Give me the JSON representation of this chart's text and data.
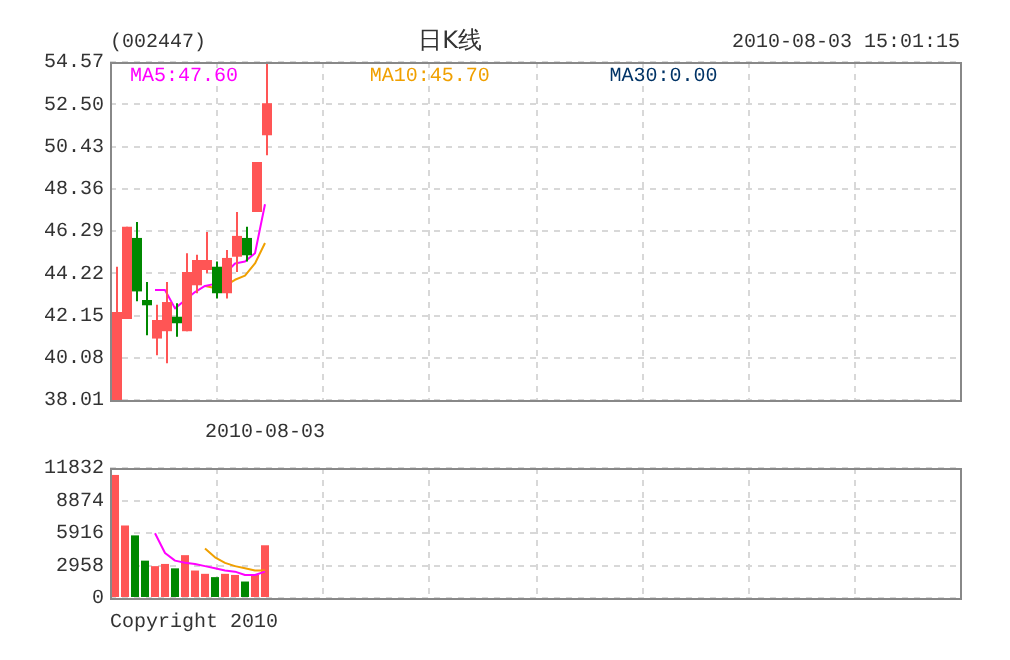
{
  "chart_data": [
    {
      "type": "candlestick",
      "title": "日K线",
      "annotations": [
        "(002447)",
        "2010-08-03 15:01:15",
        "2010-08-03"
      ],
      "categories": [
        null,
        null,
        null,
        null,
        null,
        null,
        null,
        null,
        null,
        null,
        null,
        null,
        null,
        null,
        null,
        null,
        null,
        null,
        null,
        null,
        null,
        null,
        null,
        null,
        null,
        null,
        null,
        null,
        null,
        null,
        null,
        null,
        null,
        null,
        null,
        null,
        null,
        null,
        null,
        null,
        null,
        null,
        null,
        null,
        null,
        null,
        null,
        null,
        null,
        null,
        null,
        null,
        null,
        null,
        null,
        null,
        null,
        null,
        null,
        null,
        null,
        null,
        null,
        null,
        null,
        null,
        null,
        null,
        null,
        null,
        null,
        null,
        null,
        null,
        null,
        null,
        null,
        null,
        null,
        null,
        null,
        null,
        null,
        null,
        null
      ],
      "ohlc": [
        [
          38.01,
          44.54,
          38.01,
          42.32
        ],
        [
          41.98,
          46.5,
          41.98,
          46.5
        ],
        [
          45.95,
          46.73,
          42.85,
          43.33
        ],
        [
          42.91,
          43.79,
          41.18,
          42.65
        ],
        [
          41.02,
          42.68,
          40.2,
          41.93
        ],
        [
          41.38,
          43.79,
          39.81,
          42.81
        ],
        [
          42.09,
          42.75,
          41.11,
          41.77
        ],
        [
          41.38,
          45.2,
          41.38,
          44.28
        ],
        [
          43.63,
          45.13,
          43.24,
          44.87
        ],
        [
          44.38,
          46.24,
          44.22,
          44.87
        ],
        [
          44.54,
          44.8,
          42.98,
          43.24
        ],
        [
          43.24,
          45.36,
          42.98,
          44.97
        ],
        [
          45.03,
          47.22,
          44.28,
          46.05
        ],
        [
          45.95,
          46.5,
          44.8,
          45.1
        ],
        [
          47.22,
          49.67,
          47.22,
          49.67
        ],
        [
          50.98,
          54.57,
          50.0,
          52.55
        ],
        null,
        null,
        null,
        null,
        null,
        null,
        null,
        null,
        null,
        null,
        null,
        null,
        null,
        null,
        null,
        null,
        null,
        null,
        null,
        null,
        null,
        null,
        null,
        null,
        null,
        null,
        null,
        null,
        null,
        null,
        null,
        null,
        null,
        null,
        null,
        null,
        null,
        null,
        null,
        null,
        null,
        null,
        null,
        null,
        null,
        null,
        null,
        null,
        null,
        null,
        null,
        null,
        null,
        null,
        null,
        null,
        null,
        null,
        null,
        null,
        null,
        null,
        null,
        null,
        null,
        null,
        null,
        null,
        null
      ],
      "colors": [
        "#ff5555",
        "#ff5555",
        "#008800",
        "#008800",
        "#ff5555",
        "#ff5555",
        "#008800",
        "#ff5555",
        "#ff5555",
        "#ff5555",
        "#008800",
        "#ff5555",
        "#ff5555",
        "#008800",
        "#ff5555",
        "#ff5555",
        null,
        null,
        null,
        null,
        null,
        null,
        null,
        null,
        null,
        null,
        null,
        null,
        null,
        null,
        null,
        null,
        null,
        null,
        null,
        null,
        null,
        null,
        null,
        null,
        null,
        null,
        null,
        null,
        null,
        null,
        null,
        null,
        null,
        null,
        null,
        null,
        null,
        null,
        null,
        null,
        null,
        null,
        null,
        null,
        null,
        null,
        null,
        null,
        null,
        null,
        null,
        null,
        null,
        null,
        null,
        null,
        null,
        null,
        null,
        null,
        null,
        null,
        null,
        null,
        null,
        null,
        null,
        null,
        null
      ],
      "series": [
        {
          "type": "line",
          "name": "MA5:47.60",
          "color": "#ff00ff",
          "values": [
            null,
            null,
            null,
            null,
            43.4,
            43.4,
            42.5,
            42.9,
            43.3,
            43.6,
            43.7,
            null,
            44.7,
            44.8,
            45.2,
            47.6,
            null,
            null,
            null,
            null,
            null,
            null,
            null,
            null,
            null,
            null,
            null,
            null,
            null,
            null,
            null,
            null,
            null,
            null,
            null,
            null,
            null,
            null,
            null,
            null,
            null,
            null,
            null,
            null,
            null,
            null,
            null,
            null,
            null,
            null,
            null,
            null,
            null,
            null,
            null,
            null,
            null,
            null,
            null,
            null,
            null,
            null,
            null,
            null,
            null,
            null,
            null,
            null,
            null,
            null,
            null,
            null,
            null,
            null,
            null,
            null,
            null,
            null,
            null,
            null,
            null,
            null,
            null,
            null,
            null
          ]
        },
        {
          "type": "line",
          "name": "MA10:45.70",
          "color": "#f0a000",
          "values": [
            null,
            null,
            null,
            null,
            null,
            null,
            null,
            null,
            null,
            43.6,
            43.5,
            43.6,
            43.9,
            44.1,
            44.7,
            45.7,
            null,
            null,
            null,
            null,
            null,
            null,
            null,
            null,
            null,
            null,
            null,
            null,
            null,
            null,
            null,
            null,
            null,
            null,
            null,
            null,
            null,
            null,
            null,
            null,
            null,
            null,
            null,
            null,
            null,
            null,
            null,
            null,
            null,
            null,
            null,
            null,
            null,
            null,
            null,
            null,
            null,
            null,
            null,
            null,
            null,
            null,
            null,
            null,
            null,
            null,
            null,
            null,
            null,
            null,
            null,
            null,
            null,
            null,
            null,
            null,
            null,
            null,
            null,
            null,
            null,
            null,
            null,
            null,
            null
          ]
        },
        {
          "type": "line",
          "name": "MA30:0.00",
          "color": "#003366",
          "values": [
            null,
            null,
            null,
            null,
            null,
            null,
            null,
            null,
            null,
            null,
            null,
            null,
            null,
            null,
            null,
            null,
            null,
            null,
            null,
            null,
            null,
            null,
            null,
            null,
            null,
            null,
            null,
            null,
            null,
            null,
            null,
            null,
            null,
            null,
            null,
            null,
            null,
            null,
            null,
            null,
            null,
            null,
            null,
            null,
            null,
            null,
            null,
            null,
            null,
            null,
            null,
            null,
            null,
            null,
            null,
            null,
            null,
            null,
            null,
            null,
            null,
            null,
            null,
            null,
            null,
            null,
            null,
            null,
            null,
            null,
            null,
            null,
            null,
            null,
            null,
            null,
            null,
            null,
            null,
            null,
            null,
            null,
            null,
            null,
            null
          ]
        }
      ],
      "ylim": [
        38.01,
        54.57
      ],
      "yticks": [
        38.01,
        40.08,
        42.15,
        44.22,
        46.29,
        48.36,
        50.43,
        {
          "value": 52.5,
          "label": "52.50"
        },
        54.57
      ],
      "grid": true,
      "legend": "top",
      "tick_labels": "y",
      "marker": "none"
    },
    {
      "type": "bar",
      "annotations": [
        "Copyright 2010"
      ],
      "categories": [
        null,
        null,
        null,
        null,
        null,
        null,
        null,
        null,
        null,
        null,
        null,
        null,
        null,
        null,
        null,
        null,
        null,
        null,
        null,
        null,
        null,
        null,
        null,
        null,
        null,
        null,
        null,
        null,
        null,
        null,
        null,
        null,
        null,
        null,
        null,
        null,
        null,
        null,
        null,
        null,
        null,
        null,
        null,
        null,
        null,
        null,
        null,
        null,
        null,
        null,
        null,
        null,
        null,
        null,
        null,
        null,
        null,
        null,
        null,
        null,
        null,
        null,
        null,
        null,
        null,
        null,
        null,
        null,
        null,
        null,
        null,
        null,
        null,
        null,
        null,
        null,
        null,
        null,
        null,
        null,
        null,
        null,
        null,
        null,
        null
      ],
      "series": [
        {
          "type": "bar",
          "colors": [
            "#ff5555",
            "#ff5555",
            "#008800",
            "#008800",
            "#ff5555",
            "#ff5555",
            "#008800",
            "#ff5555",
            "#ff5555",
            "#ff5555",
            "#008800",
            "#ff5555",
            "#ff5555",
            "#008800",
            "#ff5555",
            "#ff5555",
            null,
            null,
            null,
            null,
            null,
            null,
            null,
            null,
            null,
            null,
            null,
            null,
            null,
            null,
            null,
            null,
            null,
            null,
            null,
            null,
            null,
            null,
            null,
            null,
            null,
            null,
            null,
            null,
            null,
            null,
            null,
            null,
            null,
            null,
            null,
            null,
            null,
            null,
            null,
            null,
            null,
            null,
            null,
            null,
            null,
            null,
            null,
            null,
            null,
            null,
            null,
            null,
            null,
            null,
            null,
            null,
            null,
            null,
            null,
            null,
            null,
            null,
            null,
            null,
            null,
            null,
            null,
            null,
            null
          ],
          "values": [
            11200,
            6600,
            5700,
            3400,
            2900,
            3100,
            2700,
            3900,
            2500,
            2200,
            1900,
            2200,
            2100,
            1500,
            2100,
            4800,
            null,
            null,
            null,
            null,
            null,
            null,
            null,
            null,
            null,
            null,
            null,
            null,
            null,
            null,
            null,
            null,
            null,
            null,
            null,
            null,
            null,
            null,
            null,
            null,
            null,
            null,
            null,
            null,
            null,
            null,
            null,
            null,
            null,
            null,
            null,
            null,
            null,
            null,
            null,
            null,
            null,
            null,
            null,
            null,
            null,
            null,
            null,
            null,
            null,
            null,
            null,
            null,
            null,
            null,
            null,
            null,
            null,
            null,
            null,
            null,
            null,
            null,
            null,
            null,
            null,
            null,
            null,
            null,
            null
          ]
        },
        {
          "type": "line",
          "color": "#ff00ff",
          "values": [
            null,
            null,
            null,
            null,
            5900,
            4100,
            3400,
            3200,
            3100,
            2900,
            2700,
            2500,
            2400,
            2100,
            2100,
            2400,
            null,
            null,
            null,
            null,
            null,
            null,
            null,
            null,
            null,
            null,
            null,
            null,
            null,
            null,
            null,
            null,
            null,
            null,
            null,
            null,
            null,
            null,
            null,
            null,
            null,
            null,
            null,
            null,
            null,
            null,
            null,
            null,
            null,
            null,
            null,
            null,
            null,
            null,
            null,
            null,
            null,
            null,
            null,
            null,
            null,
            null,
            null,
            null,
            null,
            null,
            null,
            null,
            null,
            null,
            null,
            null,
            null,
            null,
            null,
            null,
            null,
            null,
            null,
            null,
            null,
            null,
            null,
            null,
            null
          ]
        },
        {
          "type": "line",
          "color": "#f0a000",
          "values": [
            null,
            null,
            null,
            null,
            null,
            null,
            null,
            null,
            null,
            4500,
            3700,
            3200,
            2900,
            2700,
            2500,
            2500,
            null,
            null,
            null,
            null,
            null,
            null,
            null,
            null,
            null,
            null,
            null,
            null,
            null,
            null,
            null,
            null,
            null,
            null,
            null,
            null,
            null,
            null,
            null,
            null,
            null,
            null,
            null,
            null,
            null,
            null,
            null,
            null,
            null,
            null,
            null,
            null,
            null,
            null,
            null,
            null,
            null,
            null,
            null,
            null,
            null,
            null,
            null,
            null,
            null,
            null,
            null,
            null,
            null,
            null,
            null,
            null,
            null,
            null,
            null,
            null,
            null,
            null,
            null,
            null,
            null,
            null,
            null,
            null,
            null
          ]
        }
      ],
      "ylim": [
        0,
        11832
      ],
      "yticks": [
        0,
        2958,
        5916,
        8874,
        11832
      ],
      "grid": true,
      "tick_labels": "y",
      "marker": "none"
    }
  ]
}
